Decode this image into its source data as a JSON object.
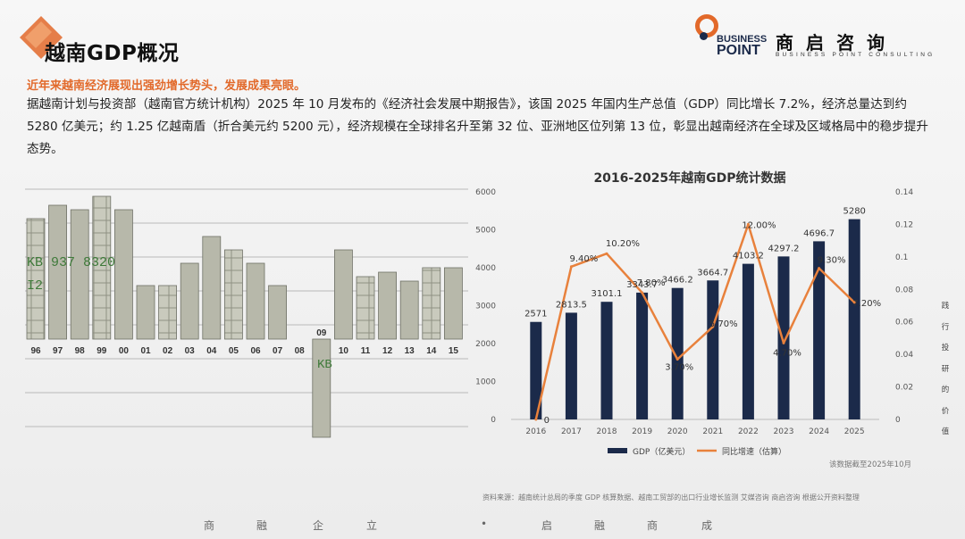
{
  "header": {
    "title": "越南GDP概况",
    "logo_mark_top": "BUSINESS",
    "logo_mark_bottom": "POINT",
    "logo_cn": "商启咨询",
    "logo_en": "BUSINESS POINT CONSULTING"
  },
  "subtitle": "近年来越南经济展现出强劲增长势头，发展成果亮眼。",
  "body_text": "据越南计划与投资部（越南官方统计机构）2025 年 10 月发布的《经济社会发展中期报告》，该国 2025 年国内生产总值（GDP）同比增长 7.2%，经济总量达到约 5280 亿美元；约 1.25 亿越南盾（折合美元约 5200 元），经济规模在全球排名升至第 32 位、亚洲地区位列第 13 位，彰显出越南经济在全球及区域格局中的稳步提升态势。",
  "colors": {
    "accent": "#e2692a",
    "bar": "#1b2a4a",
    "line": "#e8813c",
    "logo_dark": "#1b2a4a"
  },
  "money_chart": {
    "years": [
      "96",
      "97",
      "98",
      "99",
      "00",
      "01",
      "02",
      "03",
      "04",
      "05",
      "06",
      "07",
      "08",
      "09",
      "10",
      "11",
      "12",
      "13",
      "14",
      "15"
    ],
    "bill_text": [
      "KB 937 8320",
      "I2",
      "KB"
    ]
  },
  "chart_data": {
    "type": "bar",
    "title": "2016-2025年越南GDP统计数据",
    "categories": [
      "2016",
      "2017",
      "2018",
      "2019",
      "2020",
      "2021",
      "2022",
      "2023",
      "2024",
      "2025"
    ],
    "series": [
      {
        "name": "GDP（亿美元）",
        "type": "bar",
        "axis": "left",
        "values": [
          2571,
          2813.5,
          3101.1,
          3343.7,
          3466.2,
          3664.7,
          4103.2,
          4297.2,
          4696.7,
          5280
        ],
        "labels": [
          "2571",
          "2813.5",
          "3101.1",
          "3343.7",
          "3466.2",
          "3664.7",
          "4103.2",
          "4297.2",
          "4696.7",
          "5280"
        ]
      },
      {
        "name": "同比增速（估算）",
        "type": "line",
        "axis": "right",
        "values": [
          0,
          0.094,
          0.102,
          0.078,
          0.037,
          0.057,
          0.12,
          0.047,
          0.093,
          0.072
        ],
        "labels": [
          "0",
          "9.40%",
          "10.20%",
          "7.80%",
          "3.70%",
          "5.70%",
          "12.00%",
          "4.70%",
          "9.30%",
          "7.20%"
        ]
      }
    ],
    "y_left": {
      "range": [
        0,
        6000
      ],
      "ticks": [
        "0",
        "1000",
        "2000",
        "3000",
        "4000",
        "5000",
        "6000"
      ]
    },
    "y_right": {
      "range": [
        0,
        0.14
      ],
      "ticks": [
        "0",
        "0.02",
        "0.04",
        "0.06",
        "0.08",
        "0.1",
        "0.12",
        "0.14"
      ]
    },
    "grid": false,
    "legend_position": "bottom",
    "note": "该数据截至2025年10月"
  },
  "source": "资料来源：越南统计总局的季度 GDP 核算数据、越南工贸部的出口行业增长监测 艾媒咨询 商启咨询 根据公开资料整理",
  "side_text": [
    "践",
    "行",
    "投",
    "研",
    "的",
    "价",
    "值"
  ],
  "footer": [
    "商",
    "融",
    "企",
    "立",
    "•",
    "启",
    "融",
    "商",
    "成"
  ]
}
